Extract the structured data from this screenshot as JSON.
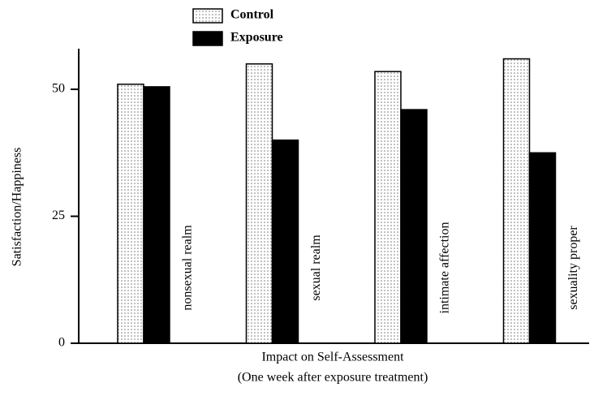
{
  "chart_data": {
    "type": "bar",
    "y_label": "Satisfaction/Happiness",
    "x_label": [
      "Impact on Self-Assessment",
      "(One week after exposure treatment)"
    ],
    "categories": [
      "nonsexual realm",
      "sexual realm",
      "intimate affection",
      "sexuality proper"
    ],
    "series": [
      {
        "name": "Control",
        "color": "#777777",
        "fill": "dots",
        "values": [
          51,
          55,
          53.5,
          56
        ]
      },
      {
        "name": "Exposure",
        "color": "#000000",
        "fill": "solid",
        "values": [
          50.5,
          40,
          46,
          37.5
        ]
      }
    ],
    "ylim": [
      0,
      58
    ],
    "yticks": [
      0,
      25,
      50
    ],
    "grid": false,
    "legend": "top"
  }
}
